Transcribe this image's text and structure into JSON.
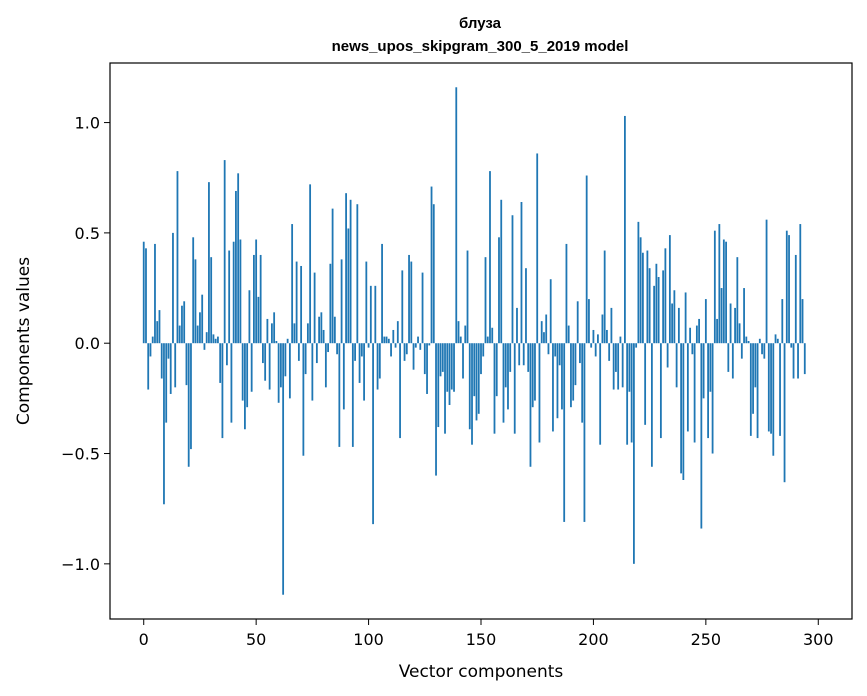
{
  "chart_data": {
    "type": "bar",
    "title": "блуза",
    "subtitle": "news_upos_skipgram_300_5_2019 model",
    "xlabel": "Vector components",
    "ylabel": "Components values",
    "xlim": [
      -15,
      315
    ],
    "ylim": [
      -1.25,
      1.27
    ],
    "xticks": [
      0,
      50,
      100,
      150,
      200,
      250,
      300
    ],
    "xtick_labels": [
      "0",
      "50",
      "100",
      "150",
      "200",
      "250",
      "300"
    ],
    "yticks": [
      -1.0,
      -0.5,
      0.0,
      0.5,
      1.0
    ],
    "ytick_labels": [
      "−1.0",
      "−0.5",
      "0.0",
      "0.5",
      "1.0"
    ],
    "grid": false,
    "bar_color": "#1f77b4",
    "values": [
      0.46,
      0.43,
      -0.21,
      -0.06,
      0.03,
      0.45,
      0.1,
      0.15,
      -0.16,
      -0.73,
      -0.36,
      -0.07,
      -0.23,
      0.5,
      -0.2,
      0.78,
      0.08,
      0.17,
      0.19,
      -0.19,
      -0.56,
      -0.48,
      0.48,
      0.38,
      0.08,
      0.14,
      0.22,
      -0.03,
      0.05,
      0.73,
      0.39,
      0.04,
      0.02,
      0.03,
      -0.18,
      -0.43,
      0.83,
      -0.1,
      0.42,
      -0.36,
      0.46,
      0.69,
      0.77,
      0.47,
      -0.26,
      -0.39,
      -0.29,
      0.24,
      -0.22,
      0.4,
      0.47,
      0.21,
      0.4,
      -0.09,
      -0.17,
      0.11,
      -0.21,
      0.09,
      0.14,
      0.01,
      -0.27,
      -0.2,
      -1.14,
      -0.15,
      0.02,
      -0.25,
      0.54,
      0.09,
      0.37,
      -0.08,
      0.35,
      -0.51,
      -0.14,
      0.09,
      0.72,
      -0.26,
      0.32,
      -0.09,
      0.12,
      0.14,
      0.06,
      -0.2,
      -0.04,
      0.36,
      0.61,
      0.12,
      -0.05,
      -0.47,
      0.38,
      -0.3,
      0.68,
      0.52,
      0.65,
      -0.47,
      -0.08,
      0.63,
      -0.18,
      -0.06,
      -0.26,
      0.37,
      -0.02,
      0.26,
      -0.82,
      0.26,
      -0.21,
      -0.16,
      0.45,
      0.03,
      0.03,
      0.02,
      -0.06,
      0.06,
      -0.02,
      0.1,
      -0.43,
      0.33,
      -0.08,
      -0.05,
      0.4,
      0.37,
      -0.12,
      -0.02,
      0.03,
      -0.03,
      0.32,
      -0.14,
      -0.23,
      -0.01,
      0.71,
      0.63,
      -0.6,
      -0.38,
      -0.15,
      -0.13,
      -0.41,
      -0.22,
      -0.28,
      -0.21,
      -0.22,
      1.16,
      0.1,
      0.03,
      -0.16,
      0.08,
      0.42,
      -0.39,
      -0.46,
      -0.24,
      -0.35,
      -0.32,
      -0.14,
      -0.06,
      0.39,
      0.03,
      0.78,
      0.07,
      -0.41,
      -0.24,
      0.48,
      0.65,
      -0.36,
      -0.2,
      -0.3,
      -0.13,
      0.58,
      -0.41,
      0.16,
      -0.1,
      0.64,
      -0.1,
      0.34,
      -0.13,
      -0.56,
      -0.29,
      -0.26,
      0.86,
      -0.45,
      0.1,
      0.05,
      0.13,
      -0.05,
      0.29,
      -0.4,
      -0.06,
      -0.34,
      -0.1,
      -0.3,
      -0.81,
      0.45,
      0.08,
      -0.29,
      -0.26,
      -0.19,
      0.19,
      -0.09,
      -0.36,
      -0.81,
      0.76,
      0.2,
      -0.02,
      0.06,
      -0.06,
      0.04,
      -0.46,
      0.13,
      0.42,
      0.06,
      -0.08,
      0.16,
      -0.21,
      -0.13,
      -0.21,
      0.03,
      -0.2,
      1.03,
      -0.46,
      -0.22,
      -0.45,
      -1.0,
      -0.02,
      0.55,
      0.48,
      0.41,
      -0.37,
      0.42,
      0.34,
      -0.56,
      0.26,
      0.36,
      0.3,
      -0.43,
      0.33,
      0.43,
      -0.11,
      0.49,
      0.18,
      0.24,
      -0.2,
      0.16,
      -0.59,
      -0.62,
      0.23,
      -0.4,
      0.07,
      -0.05,
      -0.45,
      0.08,
      0.11,
      -0.84,
      -0.25,
      0.2,
      -0.43,
      -0.22,
      -0.5,
      0.51,
      0.11,
      0.54,
      0.25,
      0.47,
      0.46,
      -0.13,
      0.18,
      -0.16,
      0.16,
      0.39,
      0.09,
      -0.07,
      0.25,
      0.03,
      0.01,
      -0.42,
      -0.32,
      -0.2,
      -0.43,
      0.02,
      -0.05,
      -0.07,
      0.56,
      -0.4,
      -0.41,
      -0.51,
      0.04,
      0.02,
      -0.42,
      0.2,
      -0.63,
      0.51,
      0.49,
      -0.02,
      -0.16,
      0.4,
      -0.16,
      0.54,
      0.2,
      -0.14
    ]
  }
}
